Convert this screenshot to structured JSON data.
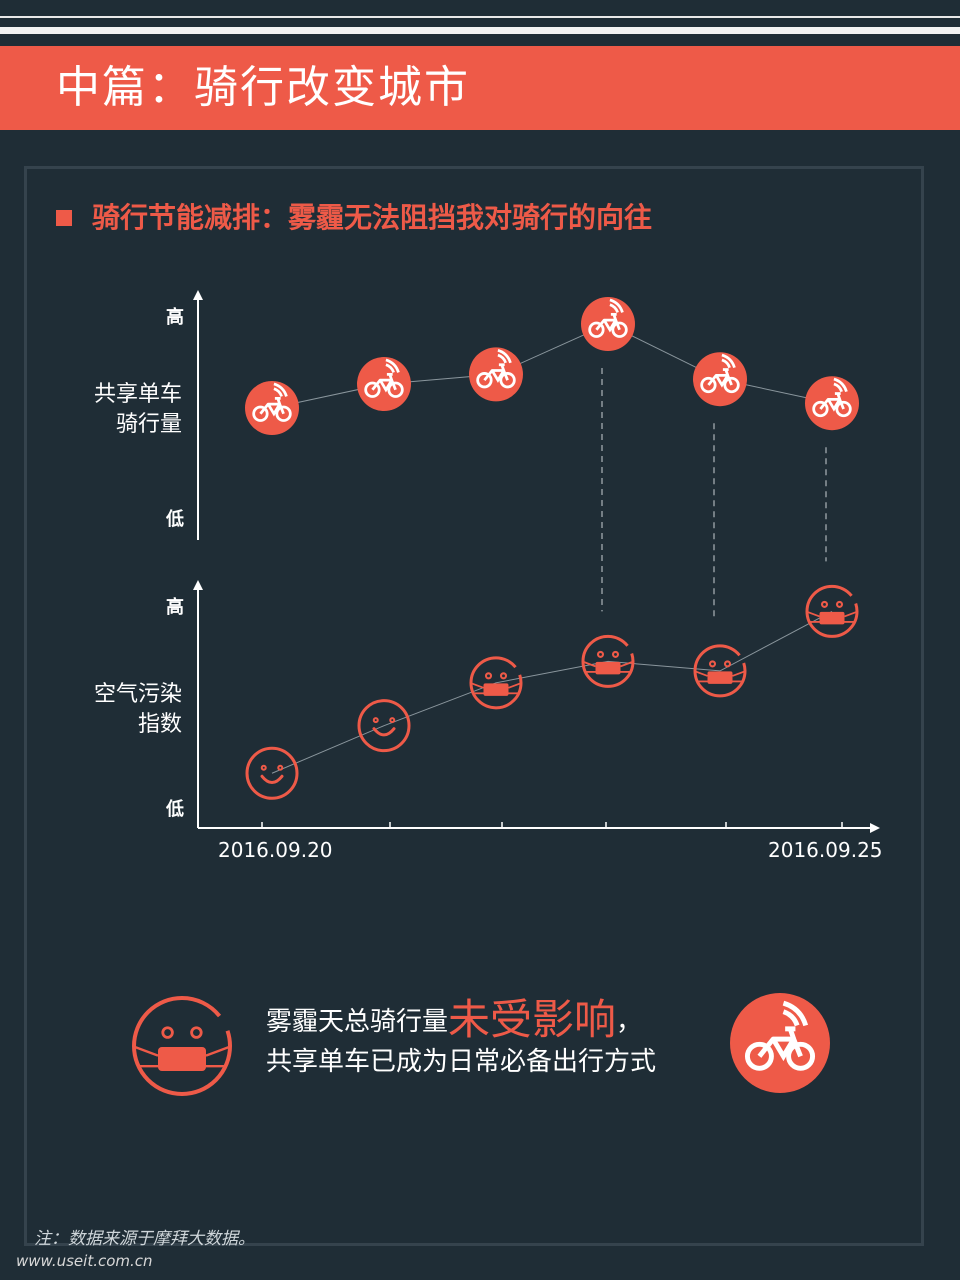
{
  "header": {
    "title": "中篇：骑行改变城市"
  },
  "subtitle": "骑行节能减排：雾霾无法阻挡我对骑行的向往",
  "colors": {
    "accent": "#ee5a48",
    "background": "#1f2d36",
    "text": "#ffffff"
  },
  "chart_data": [
    {
      "type": "line",
      "ylabel": "共享单车\n骑行量",
      "ytick_high": "高",
      "ytick_low": "低",
      "marker_icon": "bicycle-icon",
      "x": [
        "2016.09.20",
        "",
        "",
        "",
        "",
        "2016.09.25"
      ],
      "values": [
        0.55,
        0.65,
        0.69,
        0.9,
        0.67,
        0.57
      ],
      "ylim": [
        0,
        1
      ]
    },
    {
      "type": "line",
      "ylabel": "空气污染\n指数",
      "ytick_high": "高",
      "ytick_low": "低",
      "marker_icons": [
        "smile-icon",
        "smile-icon",
        "mask-face-icon",
        "mask-face-icon",
        "mask-face-icon",
        "mask-face-icon"
      ],
      "x": [
        "2016.09.20",
        "",
        "",
        "",
        "",
        "2016.09.25"
      ],
      "values": [
        0.23,
        0.43,
        0.61,
        0.7,
        0.66,
        0.91
      ],
      "ylim": [
        0,
        1
      ],
      "xtick_first": "2016.09.20",
      "xtick_last": "2016.09.25"
    }
  ],
  "conclusion": {
    "line1_pre": "雾霾天总骑行量",
    "line1_em": "未受影响",
    "line1_post": "，",
    "line2": "共享单车已成为日常必备出行方式"
  },
  "footnote": "注：数据来源于摩拜大数据。",
  "watermark": "www.useit.com.cn"
}
